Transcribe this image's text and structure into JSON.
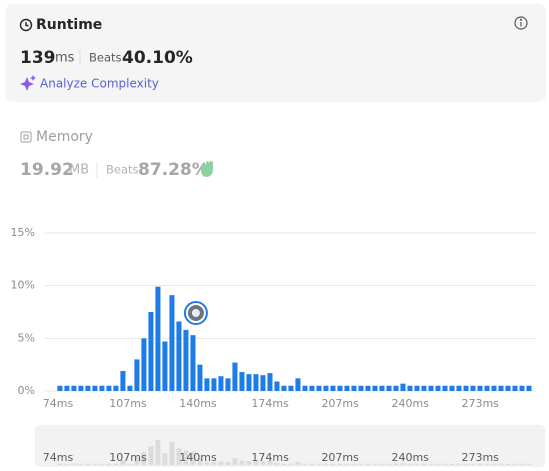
{
  "runtime": {
    "title": "Runtime",
    "value": 139,
    "unit": "ms",
    "beats_label": "Beats",
    "beats": "40.10%",
    "analyze": "Analyze Complexity"
  },
  "memory": {
    "title": "Memory",
    "value": "19.92",
    "unit": "MB",
    "beats_label": "Beats",
    "beats": "87.28%"
  },
  "chart_data": {
    "type": "bar",
    "color": "#1e7ce6",
    "overview_color": "#dcdcdc",
    "grid": true,
    "x": [
      74.9,
      78.2,
      81.5,
      84.8,
      88.1,
      91.4,
      94.7,
      98.0,
      101.3,
      104.6,
      107.9,
      111.2,
      114.5,
      117.8,
      121.1,
      124.4,
      127.7,
      131.0,
      134.3,
      137.6,
      140.9,
      144.2,
      147.5,
      150.8,
      154.1,
      157.4,
      160.7,
      164.0,
      167.3,
      170.6,
      173.9,
      177.2,
      180.5,
      183.8,
      187.1,
      190.4,
      193.7,
      197.0,
      200.3,
      203.6,
      206.9,
      210.2,
      213.5,
      216.8,
      220.1,
      223.4,
      226.7,
      230.0,
      233.3,
      236.6,
      239.9,
      243.2,
      246.5,
      249.8,
      253.1,
      256.4,
      259.7,
      263.0,
      266.3,
      269.6,
      272.9,
      276.2,
      279.5,
      282.8,
      286.1,
      289.4,
      292.7,
      296.0
    ],
    "values": [
      0.5,
      0.5,
      0.5,
      0.5,
      0.5,
      0.5,
      0.5,
      0.5,
      0.5,
      1.9,
      0.5,
      3,
      5,
      7.5,
      9.9,
      4.7,
      9.1,
      6.6,
      5.8,
      5.3,
      2.5,
      1.2,
      1.2,
      1.4,
      1.2,
      2.7,
      1.8,
      1.6,
      1.6,
      1.5,
      1.7,
      0.9,
      0.5,
      0.5,
      1.2,
      0.5,
      0.5,
      0.5,
      0.5,
      0.5,
      0.5,
      0.5,
      0.5,
      0.5,
      0.5,
      0.5,
      0.5,
      0.5,
      0.5,
      0.7,
      0.5,
      0.5,
      0.5,
      0.5,
      0.5,
      0.5,
      0.5,
      0.5,
      0.5,
      0.5,
      0.5,
      0.5,
      0.5,
      0.5,
      0.5,
      0.5,
      0.5,
      0.5
    ],
    "xlim": [
      67.4,
      299.3
    ],
    "xticks": [
      {
        "value": 74,
        "label": "74ms"
      },
      {
        "value": 107,
        "label": "107ms"
      },
      {
        "value": 140,
        "label": "140ms"
      },
      {
        "value": 174,
        "label": "174ms"
      },
      {
        "value": 207,
        "label": "207ms"
      },
      {
        "value": 240,
        "label": "240ms"
      },
      {
        "value": 273,
        "label": "273ms"
      }
    ],
    "ylim": [
      0,
      15
    ],
    "yticks": [
      {
        "value": 0,
        "label": "0%"
      },
      {
        "value": 5,
        "label": "5%"
      },
      {
        "value": 10,
        "label": "10%"
      },
      {
        "value": 15,
        "label": "15%"
      }
    ]
  }
}
